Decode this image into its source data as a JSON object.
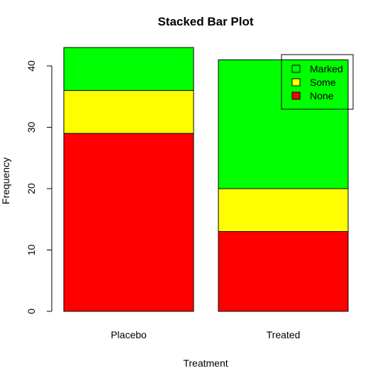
{
  "chart_data": {
    "type": "bar",
    "stacked": true,
    "title": "Stacked Bar Plot",
    "xlabel": "Treatment",
    "ylabel": "Frequency",
    "categories": [
      "Placebo",
      "Treated"
    ],
    "ylim": [
      0,
      43
    ],
    "yticks": [
      0,
      10,
      20,
      30,
      40
    ],
    "series": [
      {
        "name": "None",
        "values": [
          29,
          13
        ],
        "color": "#ff0000"
      },
      {
        "name": "Some",
        "values": [
          7,
          7
        ],
        "color": "#ffff00"
      },
      {
        "name": "Marked",
        "values": [
          7,
          21
        ],
        "color": "#00ff00"
      }
    ],
    "legend": {
      "position": "top-right",
      "items": [
        {
          "label": "Marked",
          "color": "#00ff00"
        },
        {
          "label": "Some",
          "color": "#ffff00"
        },
        {
          "label": "None",
          "color": "#ff0000"
        }
      ]
    },
    "grid": false
  }
}
